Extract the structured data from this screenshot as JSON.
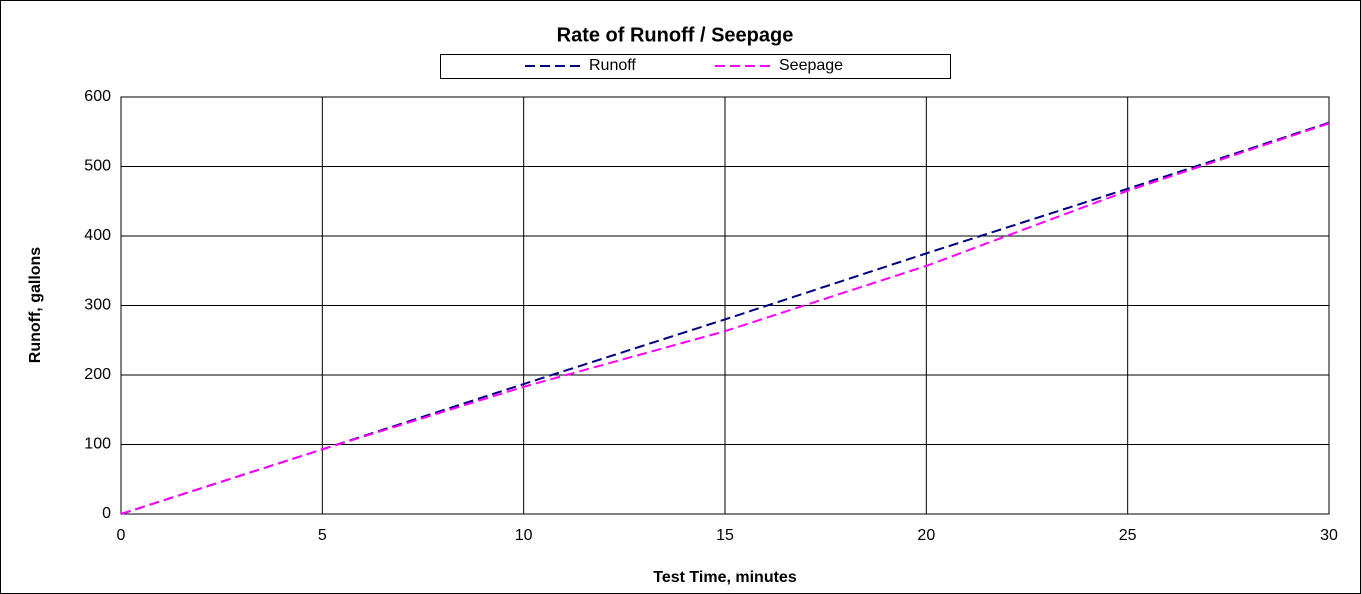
{
  "chart_data": {
    "type": "line",
    "title": "Rate of Runoff / Seepage",
    "x_label": "Test Time, minutes",
    "y_label": "Runoff, gallons",
    "x": [
      0,
      5,
      10,
      15,
      20,
      25,
      30
    ],
    "series": [
      {
        "name": "Runoff",
        "color": "#000080",
        "values": [
          0,
          93,
          187,
          280,
          375,
          468,
          563
        ]
      },
      {
        "name": "Seepage",
        "color": "#ff00ff",
        "values": [
          0,
          93,
          183,
          263,
          357,
          465,
          562
        ]
      }
    ],
    "xlim": [
      0,
      30
    ],
    "xticks": [
      0,
      5,
      10,
      15,
      20,
      25,
      30
    ],
    "ylim": [
      0,
      600
    ],
    "yticks": [
      0,
      100,
      200,
      300,
      400,
      500,
      600
    ],
    "grid": true,
    "legend": "top",
    "dashed": true
  }
}
